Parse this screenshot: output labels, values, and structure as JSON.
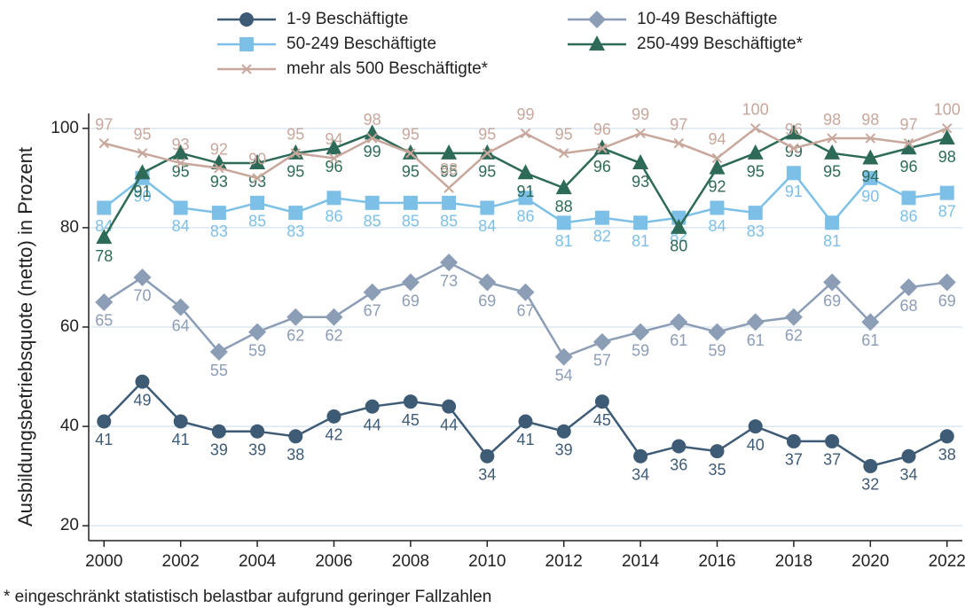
{
  "chart_data": {
    "type": "line",
    "y_label": "Ausbildungsbetriebsquote (netto) in Prozent",
    "footnote": "* eingeschränkt statistisch belastbar aufgrund geringer Fallzahlen",
    "x": [
      2000,
      2001,
      2002,
      2003,
      2004,
      2005,
      2006,
      2007,
      2008,
      2009,
      2010,
      2011,
      2012,
      2013,
      2014,
      2015,
      2016,
      2017,
      2018,
      2019,
      2020,
      2021,
      2022
    ],
    "xlim": [
      1999.6,
      2022.4
    ],
    "xticks": [
      2000,
      2002,
      2004,
      2006,
      2008,
      2010,
      2012,
      2014,
      2016,
      2018,
      2020,
      2022
    ],
    "ylim": [
      17,
      103
    ],
    "yticks": [
      20,
      40,
      60,
      80,
      100
    ],
    "grid": true,
    "series": [
      {
        "name": "1-9 Beschäftigte",
        "color": "#3e5b76",
        "marker": "circle",
        "values": [
          41,
          49,
          41,
          39,
          39,
          38,
          42,
          44,
          45,
          44,
          34,
          41,
          39,
          45,
          34,
          36,
          35,
          40,
          37,
          37,
          32,
          34,
          38
        ]
      },
      {
        "name": "10-49 Beschäftigte",
        "color": "#8c9db6",
        "marker": "diamond",
        "values": [
          65,
          70,
          64,
          55,
          59,
          62,
          62,
          67,
          69,
          73,
          69,
          67,
          54,
          57,
          59,
          61,
          59,
          61,
          62,
          69,
          61,
          68,
          69
        ]
      },
      {
        "name": "50-249 Beschäftigte",
        "color": "#7cc0e8",
        "marker": "square",
        "values": [
          84,
          90,
          84,
          83,
          85,
          83,
          86,
          85,
          85,
          85,
          84,
          86,
          81,
          82,
          81,
          82,
          84,
          83,
          91,
          81,
          90,
          86,
          87
        ]
      },
      {
        "name": "250-499 Beschäftigte*",
        "color": "#2e6a58",
        "marker": "triangle",
        "values": [
          78,
          91,
          95,
          93,
          93,
          95,
          96,
          99,
          95,
          95,
          95,
          91,
          88,
          96,
          93,
          80,
          92,
          95,
          99,
          95,
          94,
          96,
          98
        ]
      },
      {
        "name": "mehr als 500 Beschäftigte*",
        "color": "#c8a79c",
        "marker": "x",
        "values": [
          97,
          95,
          93,
          92,
          90,
          95,
          94,
          98,
          95,
          88,
          95,
          99,
          95,
          96,
          99,
          97,
          94,
          100,
          96,
          98,
          98,
          97,
          100
        ]
      }
    ]
  }
}
